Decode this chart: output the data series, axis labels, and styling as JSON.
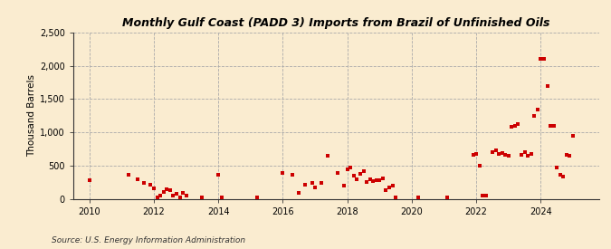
{
  "title": "Monthly Gulf Coast (PADD 3) Imports from Brazil of Unfinished Oils",
  "ylabel": "Thousand Barrels",
  "source": "Source: U.S. Energy Information Administration",
  "background_color": "#faecd0",
  "marker_color": "#cc0000",
  "ylim": [
    0,
    2500
  ],
  "yticks": [
    0,
    500,
    1000,
    1500,
    2000,
    2500
  ],
  "ytick_labels": [
    "0",
    "500",
    "1,000",
    "1,500",
    "2,000",
    "2,500"
  ],
  "xlim_start": 2009.5,
  "xlim_end": 2025.8,
  "xticks": [
    2010,
    2012,
    2014,
    2016,
    2018,
    2020,
    2022,
    2024
  ],
  "data_points": [
    [
      2010.0,
      290
    ],
    [
      2011.2,
      370
    ],
    [
      2011.5,
      300
    ],
    [
      2011.7,
      250
    ],
    [
      2011.9,
      220
    ],
    [
      2012.0,
      160
    ],
    [
      2012.1,
      30
    ],
    [
      2012.2,
      50
    ],
    [
      2012.3,
      110
    ],
    [
      2012.4,
      150
    ],
    [
      2012.5,
      130
    ],
    [
      2012.6,
      60
    ],
    [
      2012.7,
      80
    ],
    [
      2012.8,
      30
    ],
    [
      2012.9,
      100
    ],
    [
      2013.0,
      50
    ],
    [
      2013.5,
      30
    ],
    [
      2014.0,
      370
    ],
    [
      2014.1,
      30
    ],
    [
      2015.2,
      30
    ],
    [
      2016.0,
      400
    ],
    [
      2016.3,
      360
    ],
    [
      2016.5,
      100
    ],
    [
      2016.7,
      220
    ],
    [
      2016.9,
      240
    ],
    [
      2017.0,
      180
    ],
    [
      2017.2,
      250
    ],
    [
      2017.4,
      650
    ],
    [
      2017.7,
      400
    ],
    [
      2017.9,
      200
    ],
    [
      2018.0,
      450
    ],
    [
      2018.1,
      480
    ],
    [
      2018.2,
      350
    ],
    [
      2018.3,
      300
    ],
    [
      2018.4,
      380
    ],
    [
      2018.5,
      420
    ],
    [
      2018.6,
      260
    ],
    [
      2018.7,
      300
    ],
    [
      2018.8,
      270
    ],
    [
      2018.9,
      280
    ],
    [
      2019.0,
      290
    ],
    [
      2019.1,
      310
    ],
    [
      2019.2,
      140
    ],
    [
      2019.3,
      180
    ],
    [
      2019.4,
      200
    ],
    [
      2019.5,
      30
    ],
    [
      2020.2,
      30
    ],
    [
      2021.1,
      30
    ],
    [
      2021.9,
      670
    ],
    [
      2022.0,
      680
    ],
    [
      2022.1,
      500
    ],
    [
      2022.2,
      50
    ],
    [
      2022.3,
      50
    ],
    [
      2022.5,
      700
    ],
    [
      2022.6,
      730
    ],
    [
      2022.7,
      680
    ],
    [
      2022.8,
      690
    ],
    [
      2022.9,
      660
    ],
    [
      2023.0,
      650
    ],
    [
      2023.1,
      1080
    ],
    [
      2023.2,
      1100
    ],
    [
      2023.3,
      1120
    ],
    [
      2023.4,
      660
    ],
    [
      2023.5,
      700
    ],
    [
      2023.6,
      650
    ],
    [
      2023.7,
      680
    ],
    [
      2023.8,
      1250
    ],
    [
      2023.9,
      1350
    ],
    [
      2024.0,
      2100
    ],
    [
      2024.1,
      2100
    ],
    [
      2024.2,
      1700
    ],
    [
      2024.3,
      1100
    ],
    [
      2024.4,
      1100
    ],
    [
      2024.5,
      470
    ],
    [
      2024.6,
      360
    ],
    [
      2024.7,
      340
    ],
    [
      2024.8,
      660
    ],
    [
      2024.9,
      650
    ],
    [
      2025.0,
      950
    ]
  ]
}
